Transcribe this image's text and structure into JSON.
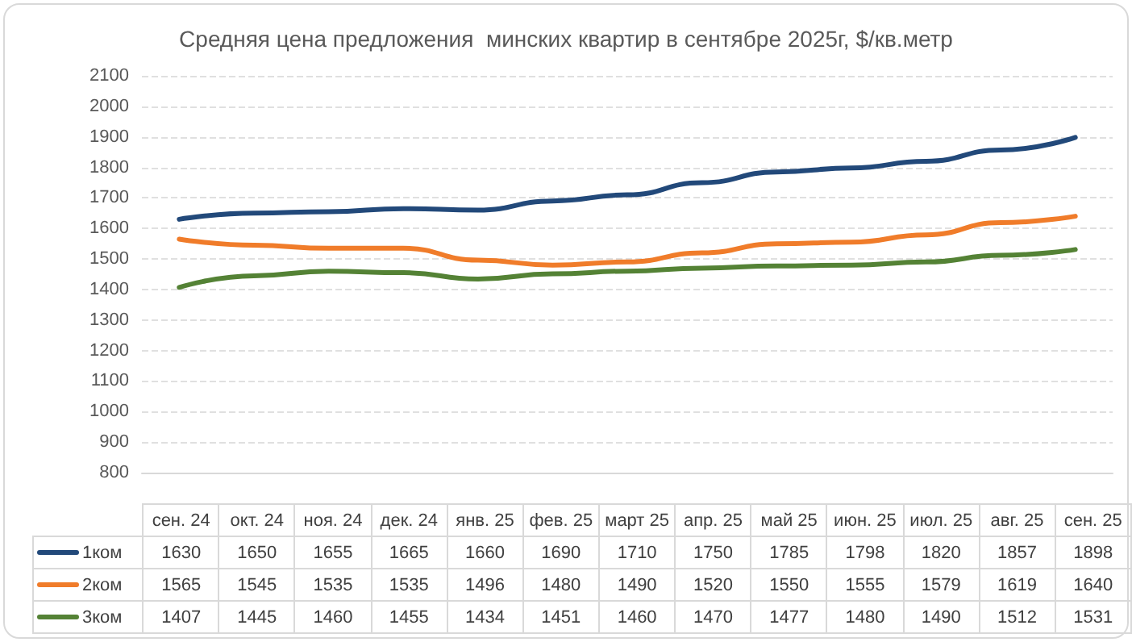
{
  "chart_data": {
    "type": "line",
    "title": "Средняя цена предложения  минских квартир в сентябре 2025г, $/кв.метр",
    "categories": [
      "сен. 24",
      "окт. 24",
      "ноя. 24",
      "дек. 24",
      "янв. 25",
      "фев. 25",
      "март 25",
      "апр. 25",
      "май 25",
      "июн. 25",
      "июл. 25",
      "авг. 25",
      "сен. 25"
    ],
    "series": [
      {
        "name": "1ком",
        "color": "#22497a",
        "values": [
          1630,
          1650,
          1655,
          1665,
          1660,
          1690,
          1710,
          1750,
          1785,
          1798,
          1820,
          1857,
          1898
        ]
      },
      {
        "name": "2ком",
        "color": "#f07c2a",
        "values": [
          1565,
          1545,
          1535,
          1535,
          1496,
          1480,
          1490,
          1520,
          1550,
          1555,
          1579,
          1619,
          1640
        ]
      },
      {
        "name": "3ком",
        "color": "#548235",
        "values": [
          1407,
          1445,
          1460,
          1455,
          1434,
          1451,
          1460,
          1470,
          1477,
          1480,
          1490,
          1512,
          1531
        ]
      }
    ],
    "ylim": [
      800,
      2100
    ],
    "yticks": [
      800,
      900,
      1000,
      1100,
      1200,
      1300,
      1400,
      1500,
      1600,
      1700,
      1800,
      1900,
      2000,
      2100
    ],
    "grid": "y",
    "legend": "bottom",
    "marker": "none",
    "line_style": "solid",
    "data_labels": true
  }
}
